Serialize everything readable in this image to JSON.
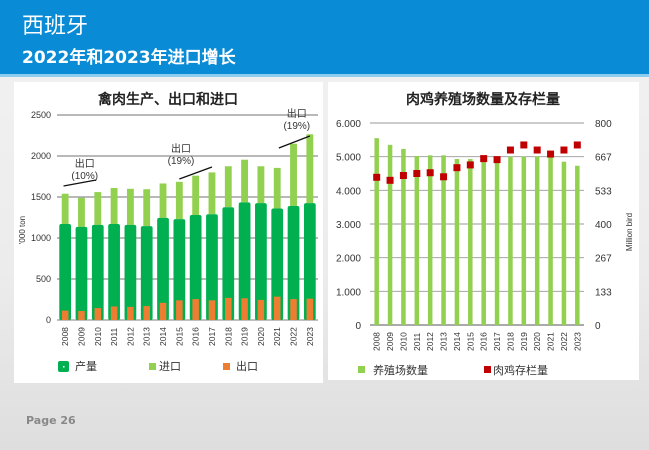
{
  "header": {
    "title": "西班牙",
    "subtitle": "2022年和2023年进口增长"
  },
  "footer": {
    "page_label": "Page 26"
  },
  "colors": {
    "header_bg": "#0a8bd6",
    "production": "#00b050",
    "import": "#92d050",
    "export": "#ed7d31",
    "farms": "#92d050",
    "stock": "#c00000"
  },
  "chart_data": [
    {
      "type": "bar",
      "stacked": true,
      "title": "禽肉生产、出口和进口",
      "ylabel": "'000 ton",
      "xlabel": "",
      "ylim": [
        0,
        2500
      ],
      "yticks": [
        "0",
        "500",
        "1000",
        "1500",
        "2000",
        "2500"
      ],
      "ytick_values": [
        0,
        500,
        1000,
        1500,
        2000,
        2500
      ],
      "grid": true,
      "categories": [
        "2008",
        "2009",
        "2010",
        "2011",
        "2012",
        "2013",
        "2014",
        "2015",
        "2016",
        "2017",
        "2018",
        "2019",
        "2020",
        "2021",
        "2022",
        "2023"
      ],
      "series": [
        {
          "name": "产量",
          "values": [
            1170,
            1135,
            1160,
            1170,
            1160,
            1145,
            1245,
            1230,
            1280,
            1290,
            1375,
            1435,
            1425,
            1360,
            1390,
            1425
          ]
        },
        {
          "name": "进口",
          "values": [
            370,
            355,
            400,
            440,
            440,
            450,
            420,
            455,
            480,
            510,
            500,
            520,
            450,
            495,
            760,
            840
          ]
        },
        {
          "name": "出口",
          "values": [
            115,
            110,
            145,
            165,
            160,
            170,
            210,
            240,
            255,
            240,
            270,
            265,
            245,
            285,
            255,
            260
          ]
        }
      ],
      "legend": [
        "产量",
        "进口",
        "出口"
      ],
      "legend_position": "bottom",
      "annotations": [
        {
          "text_line1": "出口",
          "text_line2": "(10%)",
          "year": "2008"
        },
        {
          "text_line1": "出口",
          "text_line2": "(19%)",
          "year": "2015"
        },
        {
          "text_line1": "出口",
          "text_line2": "(19%)",
          "year": "2022"
        }
      ]
    },
    {
      "type": "bar",
      "title": "肉鸡养殖场数量及存栏量",
      "ylabel": "",
      "y2label": "Million bird",
      "ylim": [
        0,
        6000
      ],
      "y2lim": [
        0,
        800
      ],
      "yticks": [
        "0",
        "1.000",
        "2.000",
        "3.000",
        "4.000",
        "5.000",
        "6.000"
      ],
      "ytick_values": [
        0,
        1000,
        2000,
        3000,
        4000,
        5000,
        6000
      ],
      "y2ticks": [
        "0",
        "133",
        "267",
        "400",
        "533",
        "667",
        "800"
      ],
      "y2tick_values": [
        0,
        133.3,
        266.7,
        400,
        533.3,
        666.7,
        800
      ],
      "grid": true,
      "categories": [
        "2008",
        "2009",
        "2010",
        "2011",
        "2012",
        "2013",
        "2014",
        "2015",
        "2016",
        "2017",
        "2018",
        "2019",
        "2020",
        "2021",
        "2022",
        "2023"
      ],
      "series": [
        {
          "name": "养殖场数量",
          "type": "bar",
          "axis": "left",
          "values": [
            5550,
            5350,
            5230,
            5020,
            5040,
            5040,
            4930,
            4930,
            4960,
            4940,
            5000,
            5000,
            5010,
            5050,
            4850,
            4730
          ]
        },
        {
          "name": "肉鸡存栏量",
          "type": "scatter",
          "axis": "right",
          "values": [
            585,
            573,
            592,
            600,
            603,
            587,
            623,
            634,
            659,
            655,
            693,
            713,
            693,
            677,
            693,
            713
          ]
        }
      ],
      "legend": [
        "养殖场数量",
        "肉鸡存栏量"
      ],
      "legend_position": "bottom"
    }
  ]
}
